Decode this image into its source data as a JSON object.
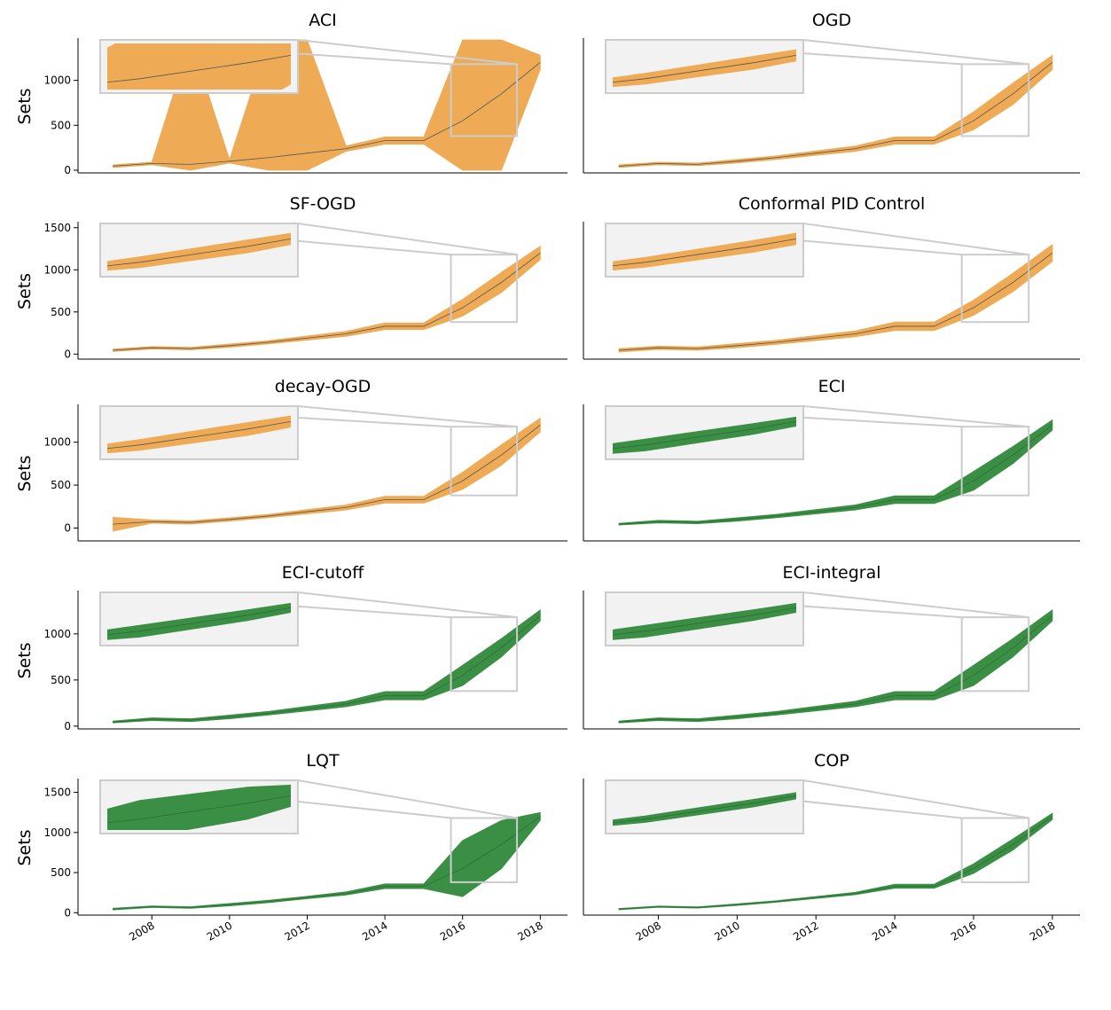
{
  "chart_data": [
    {
      "type": "band",
      "title": "ACI",
      "ylabel": "Sets",
      "x": [
        2007,
        2008,
        2009,
        2010,
        2011,
        2012,
        2013,
        2014,
        2015,
        2016,
        2017,
        2018
      ],
      "values": [
        45,
        75,
        65,
        100,
        140,
        190,
        240,
        330,
        330,
        550,
        850,
        1200
      ],
      "lower": [
        30,
        60,
        0,
        80,
        0,
        0,
        210,
        290,
        290,
        0,
        0,
        1120
      ],
      "upper": [
        60,
        90,
        1450,
        120,
        1450,
        1450,
        270,
        370,
        370,
        1450,
        1450,
        1280
      ],
      "band_color": "#eeaa55",
      "line_color": "#555555",
      "xlim": [
        2006.1,
        2018.7
      ],
      "ylim": [
        -30,
        1450
      ],
      "yticks": [
        0,
        500,
        1000
      ]
    },
    {
      "type": "band",
      "title": "OGD",
      "x": [
        2007,
        2008,
        2009,
        2010,
        2011,
        2012,
        2013,
        2014,
        2015,
        2016,
        2017,
        2018
      ],
      "values": [
        45,
        75,
        65,
        100,
        140,
        190,
        240,
        330,
        330,
        550,
        850,
        1200
      ],
      "lower": [
        30,
        60,
        50,
        80,
        120,
        165,
        210,
        290,
        290,
        450,
        730,
        1120
      ],
      "upper": [
        60,
        90,
        80,
        120,
        160,
        215,
        270,
        370,
        370,
        650,
        970,
        1280
      ],
      "band_color": "#eeaa55",
      "line_color": "#555555",
      "xlim": [
        2006.1,
        2018.7
      ],
      "ylim": [
        -30,
        1450
      ]
    },
    {
      "type": "band",
      "title": "SF-OGD",
      "ylabel": "Sets",
      "x": [
        2007,
        2008,
        2009,
        2010,
        2011,
        2012,
        2013,
        2014,
        2015,
        2016,
        2017,
        2018
      ],
      "values": [
        45,
        75,
        65,
        100,
        140,
        190,
        240,
        330,
        330,
        550,
        850,
        1200
      ],
      "lower": [
        30,
        60,
        50,
        80,
        120,
        165,
        210,
        290,
        290,
        450,
        730,
        1120
      ],
      "upper": [
        60,
        90,
        80,
        120,
        160,
        215,
        270,
        370,
        370,
        650,
        970,
        1280
      ],
      "band_color": "#eeaa55",
      "line_color": "#555555",
      "xlim": [
        2006.1,
        2018.7
      ],
      "ylim": [
        -60,
        1550
      ],
      "yticks": [
        0,
        500,
        1000,
        1500
      ]
    },
    {
      "type": "band",
      "title": "Conformal PID Control",
      "x": [
        2007,
        2008,
        2009,
        2010,
        2011,
        2012,
        2013,
        2014,
        2015,
        2016,
        2017,
        2018
      ],
      "values": [
        45,
        75,
        65,
        100,
        140,
        190,
        240,
        330,
        330,
        550,
        850,
        1200
      ],
      "lower": [
        25,
        55,
        45,
        75,
        115,
        160,
        205,
        280,
        280,
        460,
        740,
        1100
      ],
      "upper": [
        65,
        95,
        85,
        125,
        165,
        220,
        275,
        380,
        380,
        640,
        960,
        1300
      ],
      "band_color": "#eeaa55",
      "line_color": "#555555",
      "xlim": [
        2006.1,
        2018.7
      ],
      "ylim": [
        -60,
        1550
      ]
    },
    {
      "type": "band",
      "title": "decay-OGD",
      "ylabel": "Sets",
      "x": [
        2007,
        2008,
        2009,
        2010,
        2011,
        2012,
        2013,
        2014,
        2015,
        2016,
        2017,
        2018
      ],
      "values": [
        45,
        75,
        65,
        100,
        140,
        190,
        240,
        330,
        330,
        550,
        850,
        1200
      ],
      "lower": [
        -35,
        55,
        45,
        80,
        120,
        165,
        210,
        290,
        290,
        450,
        730,
        1120
      ],
      "upper": [
        125,
        95,
        85,
        120,
        160,
        215,
        270,
        370,
        370,
        650,
        970,
        1280
      ],
      "band_color": "#eeaa55",
      "line_color": "#555555",
      "xlim": [
        2006.1,
        2018.7
      ],
      "ylim": [
        -150,
        1420
      ],
      "yticks": [
        0,
        500,
        1000
      ]
    },
    {
      "type": "band",
      "title": "ECI",
      "x": [
        2007,
        2008,
        2009,
        2010,
        2011,
        2012,
        2013,
        2014,
        2015,
        2016,
        2017,
        2018
      ],
      "values": [
        45,
        75,
        65,
        100,
        140,
        190,
        240,
        330,
        330,
        550,
        850,
        1200
      ],
      "lower": [
        35,
        60,
        50,
        80,
        120,
        165,
        210,
        285,
        285,
        440,
        750,
        1140
      ],
      "upper": [
        55,
        90,
        80,
        120,
        160,
        215,
        270,
        375,
        375,
        660,
        950,
        1260
      ],
      "band_color": "#3a8f45",
      "line_color": "#2d6e34",
      "xlim": [
        2006.1,
        2018.7
      ],
      "ylim": [
        -150,
        1420
      ]
    },
    {
      "type": "band",
      "title": "ECI-cutoff",
      "ylabel": "Sets",
      "x": [
        2007,
        2008,
        2009,
        2010,
        2011,
        2012,
        2013,
        2014,
        2015,
        2016,
        2017,
        2018
      ],
      "values": [
        45,
        75,
        65,
        100,
        140,
        190,
        240,
        330,
        330,
        550,
        850,
        1200
      ],
      "lower": [
        35,
        60,
        50,
        80,
        120,
        165,
        210,
        285,
        285,
        440,
        750,
        1140
      ],
      "upper": [
        55,
        90,
        80,
        120,
        160,
        215,
        270,
        375,
        375,
        660,
        950,
        1260
      ],
      "band_color": "#3a8f45",
      "line_color": "#2d6e34",
      "xlim": [
        2006.1,
        2018.7
      ],
      "ylim": [
        -30,
        1450
      ],
      "yticks": [
        0,
        500,
        1000
      ]
    },
    {
      "type": "band",
      "title": "ECI-integral",
      "x": [
        2007,
        2008,
        2009,
        2010,
        2011,
        2012,
        2013,
        2014,
        2015,
        2016,
        2017,
        2018
      ],
      "values": [
        45,
        75,
        65,
        100,
        140,
        190,
        240,
        330,
        330,
        550,
        850,
        1200
      ],
      "lower": [
        35,
        60,
        50,
        80,
        120,
        165,
        210,
        285,
        285,
        440,
        750,
        1140
      ],
      "upper": [
        55,
        90,
        80,
        120,
        160,
        215,
        270,
        375,
        375,
        660,
        950,
        1260
      ],
      "band_color": "#3a8f45",
      "line_color": "#2d6e34",
      "xlim": [
        2006.1,
        2018.7
      ],
      "ylim": [
        -30,
        1450
      ]
    },
    {
      "type": "band",
      "title": "LQT",
      "ylabel": "Sets",
      "x": [
        2007,
        2008,
        2009,
        2010,
        2011,
        2012,
        2013,
        2014,
        2015,
        2016,
        2017,
        2018
      ],
      "values": [
        45,
        75,
        65,
        100,
        140,
        190,
        240,
        330,
        330,
        550,
        850,
        1200
      ],
      "lower": [
        35,
        65,
        55,
        85,
        125,
        175,
        220,
        300,
        300,
        200,
        550,
        1150
      ],
      "upper": [
        55,
        85,
        75,
        115,
        155,
        205,
        260,
        360,
        360,
        900,
        1150,
        1250
      ],
      "band_color": "#3a8f45",
      "line_color": "#2d6e34",
      "xlim": [
        2006.1,
        2018.7
      ],
      "ylim": [
        -30,
        1650
      ],
      "yticks": [
        0,
        500,
        1000,
        1500
      ],
      "xticks": [
        2008,
        2010,
        2012,
        2014,
        2016,
        2018
      ]
    },
    {
      "type": "band",
      "title": "COP",
      "x": [
        2007,
        2008,
        2009,
        2010,
        2011,
        2012,
        2013,
        2014,
        2015,
        2016,
        2017,
        2018
      ],
      "values": [
        45,
        75,
        65,
        100,
        140,
        190,
        240,
        330,
        330,
        550,
        850,
        1200
      ],
      "lower": [
        37,
        67,
        57,
        90,
        130,
        178,
        225,
        305,
        305,
        490,
        780,
        1160
      ],
      "upper": [
        53,
        83,
        73,
        110,
        150,
        202,
        255,
        355,
        355,
        610,
        920,
        1240
      ],
      "band_color": "#3a8f45",
      "line_color": "#2d6e34",
      "xlim": [
        2006.1,
        2018.7
      ],
      "ylim": [
        -30,
        1650
      ],
      "xticks": [
        2008,
        2010,
        2012,
        2014,
        2016,
        2018
      ]
    }
  ]
}
